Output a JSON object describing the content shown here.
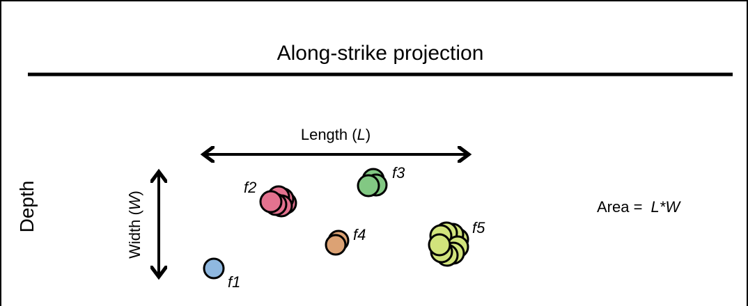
{
  "title": "Along-strike projection",
  "depth_label": "Depth",
  "length_label": {
    "prefix": "Length (",
    "symbol": "L",
    "suffix": ")"
  },
  "width_label": {
    "prefix": "Width (",
    "symbol": "W",
    "suffix": ")"
  },
  "area_label": {
    "prefix": "Area = ",
    "formula": "L*W"
  },
  "faults": [
    "f1",
    "f2",
    "f3",
    "f4",
    "f5"
  ]
}
